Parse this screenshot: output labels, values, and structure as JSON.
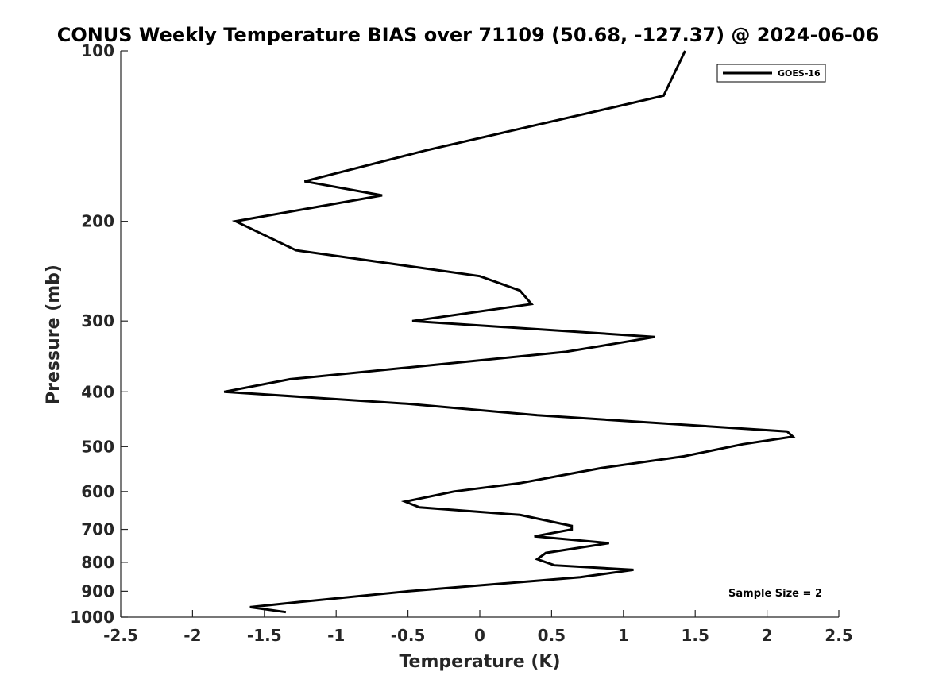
{
  "chart_data": {
    "type": "line",
    "title": "CONUS Weekly Temperature BIAS over 71109 (50.68, -127.37) @ 2024-06-06",
    "xlabel": "Temperature (K)",
    "ylabel": "Pressure (mb)",
    "xlim": [
      -2.5,
      2.5
    ],
    "ylim": [
      100,
      1000
    ],
    "y_scale": "log",
    "y_reversed": true,
    "grid": false,
    "legend_position": "top-right",
    "x_ticks": [
      -2.5,
      -2,
      -1.5,
      -1,
      -0.5,
      0,
      0.5,
      1,
      1.5,
      2,
      2.5
    ],
    "x_tick_labels": [
      "-2.5",
      "-2",
      "-1.5",
      "-1",
      "-0.5",
      "0",
      "0.5",
      "1",
      "1.5",
      "2",
      "2.5"
    ],
    "y_ticks": [
      100,
      200,
      300,
      400,
      500,
      600,
      700,
      800,
      900,
      1000
    ],
    "y_tick_labels": [
      "100",
      "200",
      "300",
      "400",
      "500",
      "600",
      "700",
      "800",
      "900",
      "1000"
    ],
    "annotation": "Sample Size = 2",
    "series": [
      {
        "name": "GOES-16",
        "color": "#000000",
        "points": [
          [
            1.43,
            100
          ],
          [
            1.28,
            120
          ],
          [
            -0.38,
            150
          ],
          [
            -1.22,
            170
          ],
          [
            -0.68,
            180
          ],
          [
            -1.7,
            200
          ],
          [
            -1.28,
            225
          ],
          [
            0.0,
            250
          ],
          [
            0.28,
            265
          ],
          [
            0.36,
            280
          ],
          [
            -0.47,
            300
          ],
          [
            1.22,
            320
          ],
          [
            0.6,
            340
          ],
          [
            -1.32,
            380
          ],
          [
            -1.78,
            400
          ],
          [
            -0.5,
            420
          ],
          [
            0.4,
            440
          ],
          [
            2.14,
            470
          ],
          [
            2.18,
            480
          ],
          [
            1.83,
            495
          ],
          [
            1.42,
            520
          ],
          [
            0.85,
            545
          ],
          [
            0.6,
            560
          ],
          [
            0.28,
            580
          ],
          [
            -0.18,
            600
          ],
          [
            -0.52,
            625
          ],
          [
            -0.42,
            640
          ],
          [
            0.28,
            660
          ],
          [
            0.64,
            690
          ],
          [
            0.64,
            700
          ],
          [
            0.38,
            720
          ],
          [
            0.9,
            740
          ],
          [
            0.46,
            770
          ],
          [
            0.4,
            790
          ],
          [
            0.52,
            810
          ],
          [
            1.07,
            825
          ],
          [
            0.7,
            850
          ],
          [
            -0.5,
            900
          ],
          [
            -1.25,
            940
          ],
          [
            -1.6,
            960
          ],
          [
            -1.35,
            980
          ]
        ]
      }
    ]
  }
}
